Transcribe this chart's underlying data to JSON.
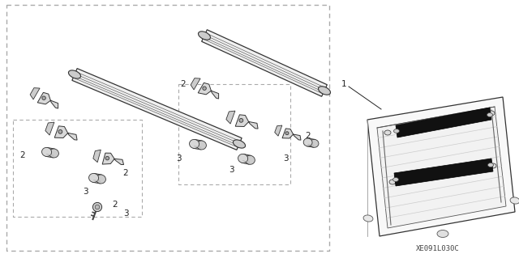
{
  "background_color": "#ffffff",
  "line_color": "#444444",
  "text_color": "#222222",
  "caption": "XE091L030C",
  "dashed_color": "#888888"
}
